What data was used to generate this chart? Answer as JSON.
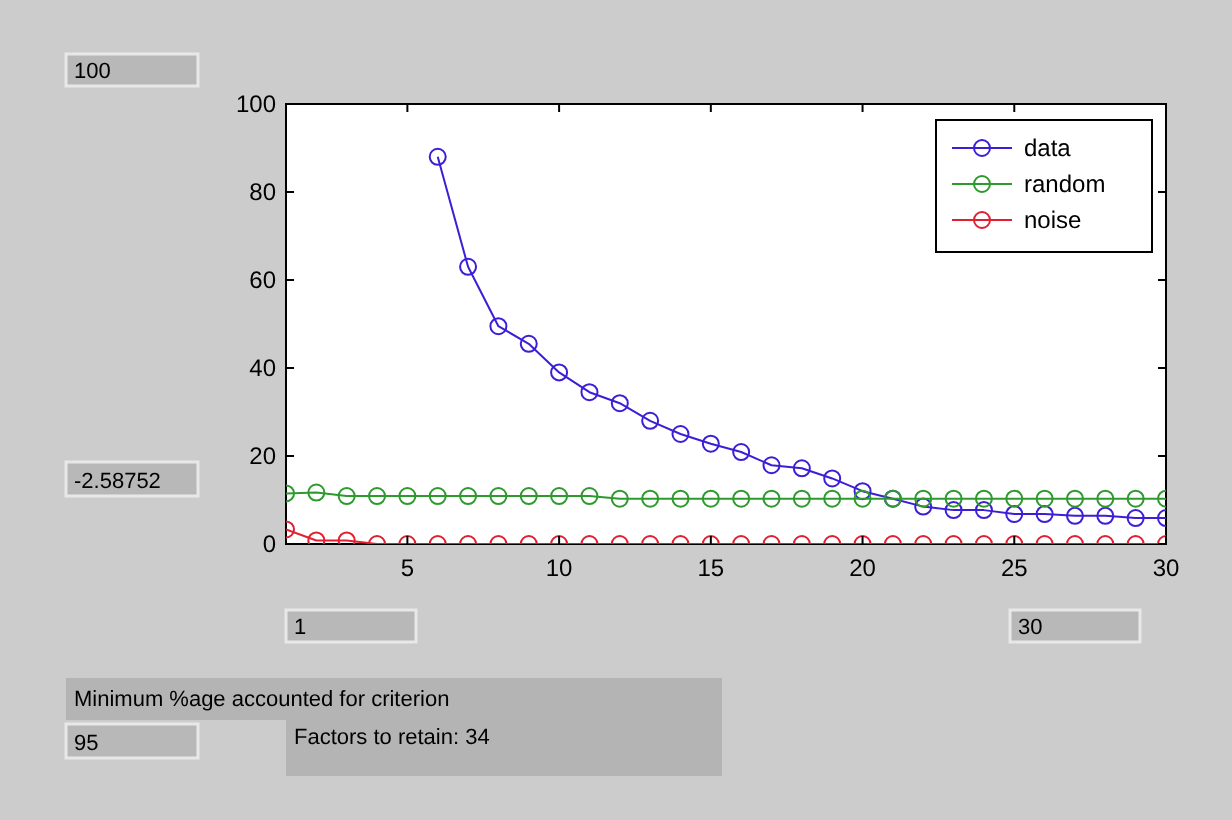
{
  "chart_data": {
    "type": "line",
    "x": [
      1,
      2,
      3,
      4,
      5,
      6,
      7,
      8,
      9,
      10,
      11,
      12,
      13,
      14,
      15,
      16,
      17,
      18,
      19,
      20,
      21,
      22,
      23,
      24,
      25,
      26,
      27,
      28,
      29,
      30
    ],
    "series": [
      {
        "name": "data",
        "color": "#3a1fd6",
        "values": [
          null,
          null,
          null,
          null,
          null,
          88,
          63,
          49.5,
          45.5,
          39,
          34.5,
          32,
          28,
          25,
          22.8,
          20.9,
          17.9,
          17.2,
          14.9,
          12,
          10.3,
          8.5,
          7.7,
          7.7,
          6.8,
          6.8,
          6.4,
          6.4,
          5.9,
          5.9
        ]
      },
      {
        "name": "random",
        "color": "#2e9a2e",
        "values": [
          11.5,
          11.7,
          10.9,
          10.9,
          10.9,
          10.9,
          10.9,
          10.9,
          10.9,
          10.9,
          10.9,
          10.3,
          10.3,
          10.3,
          10.3,
          10.3,
          10.3,
          10.3,
          10.3,
          10.3,
          10.3,
          10.3,
          10.3,
          10.3,
          10.3,
          10.3,
          10.3,
          10.3,
          10.3,
          10.3
        ]
      },
      {
        "name": "noise",
        "color": "#e02030",
        "values": [
          3.3,
          0.8,
          0.8,
          0,
          0,
          0,
          0,
          0,
          0,
          0,
          0,
          0,
          0,
          0,
          0,
          0,
          0,
          0,
          0,
          0,
          0,
          0,
          0,
          0,
          0,
          0,
          0,
          0,
          0,
          0
        ]
      }
    ],
    "xlim": [
      1,
      30
    ],
    "xticks": [
      5,
      10,
      15,
      20,
      25,
      30
    ],
    "ylim": [
      0,
      100
    ],
    "yticks": [
      0,
      20,
      40,
      60,
      80,
      100
    ],
    "grid": false,
    "legend": "top right",
    "marker": "circle",
    "line_style": "solid",
    "annotations": [
      "100",
      "-2.58752",
      "1",
      "30",
      "Minimum %age accounted for criterion",
      "95",
      "Factors to retain: 34"
    ]
  }
}
